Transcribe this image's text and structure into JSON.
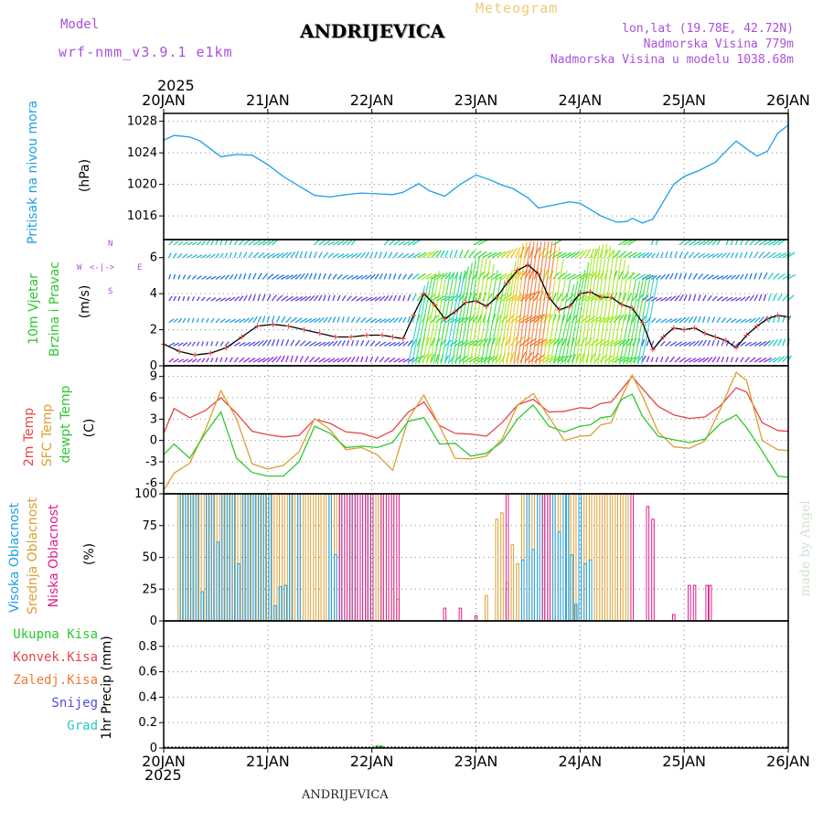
{
  "header": {
    "model_label": "Model",
    "model_name": "wrf-nmm_v3.9.1 e1km",
    "title": "ANDRIJEVICA",
    "meteogram_label": "Meteogram",
    "lonlat": "lon,lat (19.78E, 42.72N)",
    "altitude": "Nadmorska Visina 779m",
    "model_altitude": "Nadmorska Visina u modelu 1038.68m",
    "year_top": "2025",
    "year_bottom": "2025",
    "footer_title": "ANDRIJEVICA",
    "watermark": "made by Angel"
  },
  "colors": {
    "pressure": "#1ea0e6",
    "temp2m": "#e64646",
    "sfc_temp": "#dca032",
    "dewpoint": "#2dc82d",
    "high_cloud": "#1ea0e6",
    "mid_cloud": "#dca032",
    "low_cloud": "#dc1e8c",
    "total_precip": "#2dc82d",
    "conv_precip": "#e64646",
    "frozen_precip": "#f07832",
    "snow": "#5050dc",
    "hail": "#28c8c8",
    "wind_label": "#2dc82d",
    "compass": "#aa50dc"
  },
  "chart_data": [
    {
      "type": "line",
      "panel": "pressure",
      "ylabel_colored": "Pritisak na nivou mora",
      "unit": "(hPa)",
      "x_ticks": [
        "20JAN",
        "21JAN",
        "22JAN",
        "23JAN",
        "24JAN",
        "25JAN",
        "26JAN"
      ],
      "ylim": [
        1013,
        1029
      ],
      "yticks": [
        1016,
        1020,
        1024,
        1028
      ],
      "grid": true,
      "series": [
        {
          "name": "Pritisak na nivou mora",
          "x": [
            0,
            0.1,
            0.25,
            0.35,
            0.45,
            0.55,
            0.7,
            0.85,
            1.0,
            1.15,
            1.3,
            1.45,
            1.6,
            1.75,
            1.9,
            2.05,
            2.2,
            2.3,
            2.45,
            2.55,
            2.7,
            2.85,
            3.0,
            3.15,
            3.25,
            3.35,
            3.5,
            3.6,
            3.75,
            3.9,
            4.0,
            4.1,
            4.2,
            4.35,
            4.45,
            4.5,
            4.6,
            4.7,
            4.8,
            4.9,
            5.0,
            5.15,
            5.3,
            5.4,
            5.5,
            5.6,
            5.7,
            5.8,
            5.9,
            6.0
          ],
          "values": [
            1025.6,
            1026.2,
            1026.0,
            1025.5,
            1024.5,
            1023.5,
            1023.8,
            1023.7,
            1022.5,
            1021.0,
            1019.8,
            1018.6,
            1018.4,
            1018.7,
            1018.9,
            1018.8,
            1018.7,
            1019.0,
            1020.1,
            1019.2,
            1018.5,
            1020.0,
            1021.2,
            1020.5,
            1019.9,
            1019.5,
            1018.3,
            1017.0,
            1017.4,
            1017.8,
            1017.6,
            1016.8,
            1016.0,
            1015.2,
            1015.3,
            1015.7,
            1015.1,
            1015.6,
            1017.8,
            1020.0,
            1021.0,
            1021.8,
            1022.8,
            1024.2,
            1025.5,
            1024.5,
            1023.6,
            1024.2,
            1026.5,
            1027.5
          ]
        }
      ]
    },
    {
      "type": "line",
      "panel": "wind",
      "ylabel_colored": [
        "10m Vjetar",
        "Brzina i Pravac"
      ],
      "unit": "(m/s)",
      "compass": {
        "n": "N",
        "s": "S",
        "e": "E",
        "w": "W"
      },
      "ylim": [
        0,
        7
      ],
      "yticks": [
        0,
        2,
        4,
        6
      ],
      "grid": true,
      "series": [
        {
          "name": "10m Vjetar",
          "x": [
            0,
            0.15,
            0.3,
            0.45,
            0.6,
            0.75,
            0.9,
            1.05,
            1.2,
            1.35,
            1.5,
            1.65,
            1.8,
            1.95,
            2.1,
            2.2,
            2.3,
            2.4,
            2.5,
            2.6,
            2.7,
            2.8,
            2.9,
            3.0,
            3.1,
            3.2,
            3.3,
            3.4,
            3.5,
            3.6,
            3.7,
            3.8,
            3.9,
            4.0,
            4.1,
            4.2,
            4.3,
            4.4,
            4.5,
            4.6,
            4.7,
            4.8,
            4.9,
            5.0,
            5.1,
            5.2,
            5.3,
            5.4,
            5.5,
            5.6,
            5.7,
            5.8,
            5.9,
            6.0
          ],
          "values": [
            1.2,
            0.8,
            0.6,
            0.7,
            1.0,
            1.6,
            2.2,
            2.3,
            2.2,
            2.0,
            1.8,
            1.6,
            1.6,
            1.7,
            1.7,
            1.6,
            1.5,
            2.8,
            4.0,
            3.4,
            2.6,
            3.0,
            3.5,
            3.6,
            3.3,
            3.8,
            4.6,
            5.3,
            5.6,
            5.1,
            3.8,
            3.1,
            3.3,
            4.0,
            4.1,
            3.8,
            3.8,
            3.4,
            3.2,
            2.4,
            0.9,
            1.6,
            2.1,
            2.0,
            2.1,
            1.8,
            1.6,
            1.4,
            1.0,
            1.7,
            2.2,
            2.6,
            2.8,
            2.7
          ]
        }
      ]
    },
    {
      "type": "line",
      "panel": "temperature",
      "ylabel_colored": [
        "2m Temp",
        "SFC Temp",
        "dewpt Temp"
      ],
      "unit": "(C)",
      "ylim": [
        -7.5,
        10.5
      ],
      "yticks": [
        -6,
        -3,
        0,
        3,
        6,
        9
      ],
      "grid": true,
      "series": [
        {
          "name": "2m Temp",
          "x": [
            0,
            0.1,
            0.25,
            0.4,
            0.55,
            0.7,
            0.85,
            1.0,
            1.15,
            1.3,
            1.45,
            1.6,
            1.75,
            1.9,
            2.05,
            2.2,
            2.35,
            2.5,
            2.65,
            2.8,
            2.95,
            3.1,
            3.25,
            3.4,
            3.55,
            3.7,
            3.85,
            4.0,
            4.1,
            4.2,
            4.3,
            4.4,
            4.5,
            4.6,
            4.75,
            4.9,
            5.05,
            5.2,
            5.35,
            5.5,
            5.6,
            5.75,
            5.9,
            6.0
          ],
          "values": [
            1.0,
            4.5,
            3.2,
            4.2,
            6.0,
            3.8,
            1.3,
            0.8,
            0.5,
            0.7,
            3.0,
            2.4,
            1.2,
            1.0,
            0.3,
            1.4,
            4.0,
            5.4,
            2.1,
            1.0,
            0.9,
            0.6,
            2.5,
            5.0,
            5.8,
            4.0,
            4.1,
            4.6,
            4.5,
            5.2,
            5.4,
            7.2,
            9.0,
            7.3,
            4.8,
            3.6,
            3.1,
            3.3,
            4.9,
            7.4,
            6.8,
            2.5,
            1.4,
            1.3
          ]
        },
        {
          "name": "SFC Temp",
          "x": [
            0,
            0.1,
            0.25,
            0.4,
            0.55,
            0.7,
            0.85,
            1.0,
            1.15,
            1.3,
            1.45,
            1.6,
            1.75,
            1.9,
            2.05,
            2.2,
            2.35,
            2.5,
            2.65,
            2.8,
            2.95,
            3.1,
            3.25,
            3.4,
            3.55,
            3.7,
            3.85,
            4.0,
            4.1,
            4.2,
            4.3,
            4.4,
            4.5,
            4.6,
            4.75,
            4.9,
            5.05,
            5.2,
            5.35,
            5.5,
            5.6,
            5.75,
            5.9,
            6.0
          ],
          "values": [
            -7.0,
            -4.6,
            -3.2,
            1.5,
            7.0,
            3.0,
            -3.3,
            -4.0,
            -3.5,
            -1.6,
            3.1,
            1.5,
            -1.3,
            -1.0,
            -2.0,
            -4.2,
            3.0,
            6.4,
            2.0,
            -2.5,
            -2.6,
            -2.2,
            0.2,
            5.0,
            6.6,
            3.3,
            0.0,
            0.6,
            0.7,
            2.2,
            2.5,
            6.1,
            9.2,
            6.2,
            1.2,
            -0.9,
            -1.1,
            -0.1,
            4.5,
            9.6,
            8.4,
            0.0,
            -1.3,
            -1.4
          ]
        },
        {
          "name": "dewpt Temp",
          "x": [
            0,
            0.1,
            0.25,
            0.4,
            0.55,
            0.7,
            0.85,
            1.0,
            1.15,
            1.3,
            1.45,
            1.6,
            1.75,
            1.9,
            2.05,
            2.2,
            2.35,
            2.5,
            2.65,
            2.8,
            2.95,
            3.1,
            3.25,
            3.4,
            3.55,
            3.7,
            3.85,
            4.0,
            4.1,
            4.2,
            4.3,
            4.4,
            4.5,
            4.6,
            4.75,
            4.9,
            5.05,
            5.2,
            5.35,
            5.5,
            5.6,
            5.75,
            5.9,
            6.0
          ],
          "values": [
            -2.0,
            -0.5,
            -2.5,
            1.0,
            4.0,
            -2.5,
            -4.5,
            -5.0,
            -5.0,
            -3.0,
            2.0,
            1.0,
            -1.0,
            -0.8,
            -1.0,
            -0.3,
            2.7,
            3.2,
            -0.5,
            -0.4,
            -2.2,
            -1.8,
            -0.2,
            3.0,
            5.0,
            2.0,
            1.2,
            2.0,
            2.2,
            3.2,
            3.4,
            5.8,
            6.5,
            3.4,
            0.6,
            0.1,
            -0.3,
            0.2,
            2.4,
            3.6,
            1.8,
            -1.5,
            -5.0,
            -5.2
          ]
        }
      ]
    },
    {
      "type": "bar",
      "panel": "cloud_cover",
      "ylabel_colored": [
        "Visoka Oblacnost",
        "Srednja Oblacnost",
        "Niska Oblacnost"
      ],
      "unit": "(%)",
      "ylim": [
        0,
        100
      ],
      "yticks": [
        0,
        25,
        50,
        75,
        100
      ],
      "grid": true,
      "series": [
        {
          "name": "Visoka Oblacnost",
          "x": [
            0.17,
            0.22,
            0.27,
            0.32,
            0.37,
            0.42,
            0.47,
            0.52,
            0.57,
            0.62,
            0.67,
            0.72,
            0.77,
            0.82,
            0.87,
            0.92,
            0.97,
            1.02,
            1.07,
            1.12,
            1.17,
            1.22,
            1.3,
            1.6,
            1.65,
            1.7,
            1.75,
            1.8,
            1.85,
            1.9,
            1.95,
            2.0,
            3.45,
            3.5,
            3.55,
            3.6,
            3.65,
            3.7,
            3.75,
            3.8,
            3.85,
            3.88,
            3.92,
            3.96,
            4.0,
            4.05,
            4.1
          ],
          "values": [
            100,
            100,
            100,
            100,
            23,
            100,
            100,
            62,
            100,
            100,
            100,
            45,
            100,
            100,
            100,
            100,
            100,
            100,
            12,
            27,
            28,
            100,
            100,
            100,
            52,
            100,
            100,
            100,
            100,
            100,
            100,
            100,
            48,
            100,
            56,
            100,
            100,
            100,
            100,
            70,
            100,
            100,
            52,
            13,
            100,
            45,
            48
          ]
        },
        {
          "name": "Srednja Oblacnost",
          "x": [
            0.15,
            0.2,
            0.25,
            0.3,
            0.35,
            0.4,
            0.45,
            0.5,
            0.55,
            0.6,
            0.65,
            0.7,
            0.75,
            0.8,
            0.85,
            0.9,
            0.95,
            1.0,
            1.05,
            1.1,
            1.15,
            1.2,
            1.25,
            1.3,
            1.35,
            1.4,
            1.45,
            1.5,
            1.55,
            1.6,
            1.65,
            1.7,
            1.75,
            1.8,
            1.85,
            1.9,
            1.95,
            2.0,
            2.05,
            2.1,
            2.15,
            2.2,
            2.25,
            3.1,
            3.2,
            3.25,
            3.3,
            3.35,
            3.4,
            3.45,
            3.5,
            3.55,
            3.6,
            3.65,
            3.7,
            3.75,
            3.8,
            3.85,
            3.9,
            3.95,
            4.0,
            4.05,
            4.1,
            4.15,
            4.2,
            4.25,
            4.3,
            4.35,
            4.4,
            4.45
          ],
          "values": [
            100,
            100,
            100,
            100,
            100,
            100,
            100,
            100,
            100,
            100,
            100,
            100,
            100,
            100,
            100,
            100,
            100,
            100,
            100,
            100,
            100,
            100,
            100,
            100,
            100,
            100,
            100,
            100,
            100,
            100,
            100,
            100,
            100,
            100,
            100,
            100,
            100,
            100,
            100,
            100,
            100,
            100,
            17,
            20,
            80,
            85,
            30,
            60,
            45,
            100,
            100,
            100,
            100,
            100,
            100,
            100,
            100,
            100,
            100,
            100,
            100,
            100,
            100,
            100,
            100,
            100,
            100,
            100,
            100,
            100
          ]
        },
        {
          "name": "Niska Oblacnost",
          "x": [
            1.7,
            1.75,
            1.8,
            1.85,
            1.9,
            1.95,
            2.0,
            2.1,
            2.15,
            2.2,
            2.25,
            2.7,
            2.85,
            3.0,
            3.3,
            3.65,
            3.7,
            4.5,
            4.65,
            4.7,
            4.9,
            5.05,
            5.1,
            5.22,
            5.25
          ],
          "values": [
            100,
            100,
            100,
            100,
            100,
            100,
            100,
            100,
            100,
            100,
            100,
            10,
            10,
            4,
            100,
            100,
            100,
            100,
            90,
            80,
            5,
            28,
            28,
            28,
            28
          ]
        }
      ]
    },
    {
      "type": "bar",
      "panel": "precipitation",
      "ylabel": "1hr Precip (mm)",
      "legend": [
        "Ukupna Kisa",
        "Konvek.Kisa",
        "Zaledj.Kisa",
        "Snijeg",
        "Grad"
      ],
      "ylim": [
        0,
        1.0
      ],
      "yticks": [
        0,
        0.2,
        0.4,
        0.6,
        0.8
      ],
      "grid": true,
      "series": [
        {
          "name": "Ukupna Kisa",
          "x": [
            2.05,
            2.09
          ],
          "values": [
            0.02,
            0.02
          ]
        }
      ]
    }
  ]
}
